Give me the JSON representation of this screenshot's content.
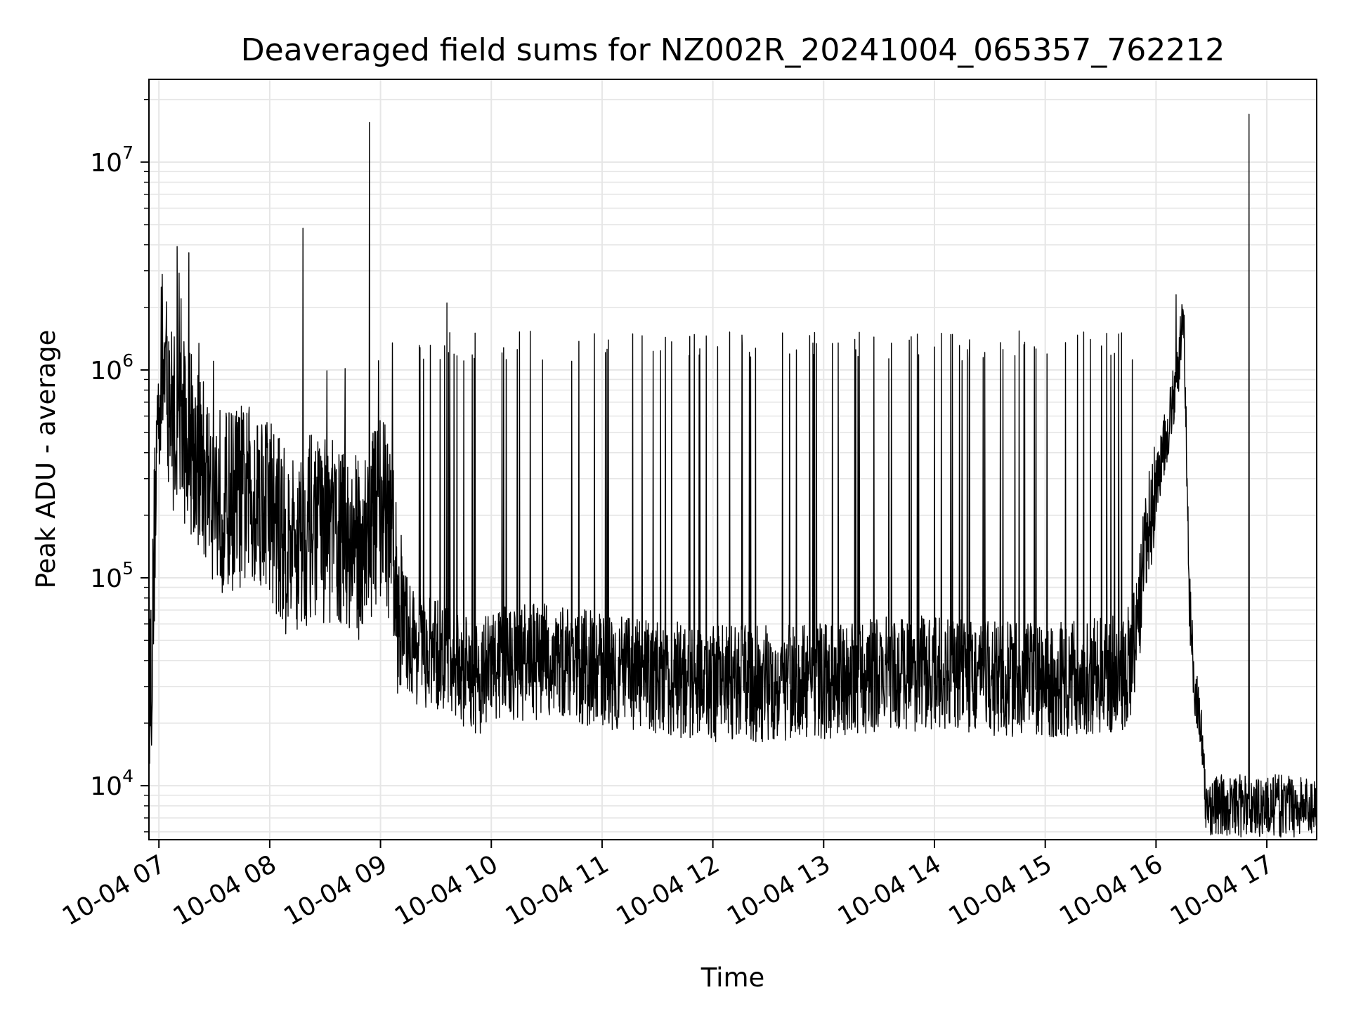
{
  "chart_data": {
    "type": "line",
    "title": "Deaveraged field sums for NZ002R_20241004_065357_762212",
    "xlabel": "Time",
    "ylabel": "Peak ADU - average",
    "x_tick_labels": [
      "10-04 07",
      "10-04 08",
      "10-04 09",
      "10-04 10",
      "10-04 11",
      "10-04 12",
      "10-04 13",
      "10-04 14",
      "10-04 15",
      "10-04 16",
      "10-04 17"
    ],
    "y_tick_labels": [
      {
        "base": "10",
        "exp": "4"
      },
      {
        "base": "10",
        "exp": "5"
      },
      {
        "base": "10",
        "exp": "6"
      },
      {
        "base": "10",
        "exp": "7"
      }
    ],
    "x_range_hours": [
      6.91,
      17.45
    ],
    "y_range": [
      5500,
      25000000
    ],
    "y_scale": "log",
    "grid": true,
    "line_color": "#000000",
    "grid_color": "#e6e6e6",
    "series": [
      {
        "x_hours": [
          6.91,
          6.94,
          6.97,
          7.0,
          7.02,
          7.05,
          7.08,
          7.12,
          7.18,
          7.25,
          7.32,
          7.4,
          7.5,
          7.6,
          7.7,
          7.8,
          7.9,
          8.0,
          8.1,
          8.2,
          8.3,
          8.4,
          8.5,
          8.6,
          8.7,
          8.8,
          8.9,
          9.0,
          9.1,
          9.15,
          9.2,
          9.3,
          9.4,
          9.5,
          9.6,
          9.7,
          9.8,
          9.9,
          10.0,
          10.5,
          11.0,
          11.5,
          12.0,
          12.5,
          13.0,
          13.5,
          14.0,
          14.5,
          15.0,
          15.5,
          15.7,
          15.78,
          15.84,
          15.9,
          16.0,
          16.1,
          16.15,
          16.2,
          16.25,
          16.3,
          16.35,
          16.4,
          16.45
        ],
        "y_values": [
          30000,
          45000,
          300000,
          700000,
          1100000,
          1000000,
          800000,
          600000,
          550000,
          500000,
          420000,
          330000,
          260000,
          230000,
          250000,
          240000,
          260000,
          230000,
          160000,
          140000,
          160000,
          180000,
          170000,
          160000,
          150000,
          140000,
          170000,
          230000,
          150000,
          80000,
          60000,
          48000,
          43000,
          42000,
          40000,
          36000,
          34000,
          33000,
          38000,
          40000,
          36000,
          33000,
          31000,
          31000,
          32000,
          34000,
          35000,
          33000,
          32000,
          34000,
          35000,
          40000,
          60000,
          130000,
          280000,
          500000,
          700000,
          1000000,
          2000000,
          80000,
          30000,
          20000,
          8000
        ]
      }
    ],
    "spikes": [
      {
        "x_hour": 7.02,
        "y": 2500000
      },
      {
        "x_hour": 7.2,
        "y": 2200000
      },
      {
        "x_hour": 8.3,
        "y": 4800000
      },
      {
        "x_hour": 8.9,
        "y": 15500000
      },
      {
        "x_hour": 9.6,
        "y": 2100000
      },
      {
        "x_hour": 16.18,
        "y": 2300000
      },
      {
        "x_hour": 16.84,
        "y": 17000000
      }
    ],
    "band_top_approx": 1300000
  }
}
